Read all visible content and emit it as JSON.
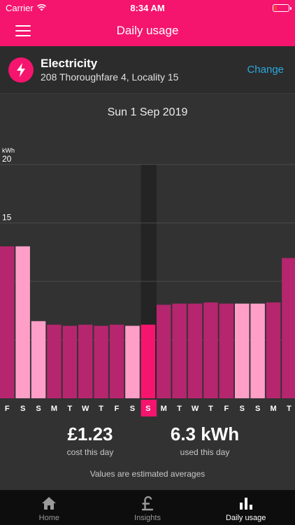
{
  "status_bar": {
    "carrier": "Carrier",
    "time": "8:34 AM"
  },
  "nav": {
    "title": "Daily usage"
  },
  "supply": {
    "icon": "lightning-icon",
    "title": "Electricity",
    "address": "208 Thoroughfare 4, Locality 15",
    "change_label": "Change"
  },
  "date": "Sun 1 Sep 2019",
  "colors": {
    "brand_pink": "#f5146e",
    "bar_dark": "#b5266e",
    "bar_light": "#ff9fc8",
    "selected_column": "#242424",
    "link_blue": "#2aa8e0"
  },
  "chart_data": {
    "type": "bar",
    "ylabel": "kWh",
    "ylim": [
      0,
      20
    ],
    "yticks": [
      "5.0",
      "10",
      "15",
      "20"
    ],
    "ytick_values": [
      5,
      10,
      15,
      20
    ],
    "categories": [
      "F",
      "S",
      "S",
      "M",
      "T",
      "W",
      "T",
      "F",
      "S",
      "S",
      "M",
      "T",
      "W",
      "T",
      "F",
      "S",
      "S",
      "M",
      "T"
    ],
    "values": [
      13.0,
      13.0,
      6.6,
      6.3,
      6.2,
      6.3,
      6.2,
      6.3,
      6.2,
      6.3,
      8.0,
      8.1,
      8.1,
      8.2,
      8.1,
      8.1,
      8.1,
      8.2,
      12.0
    ],
    "weekend": [
      false,
      true,
      true,
      false,
      false,
      false,
      false,
      false,
      true,
      true,
      false,
      false,
      false,
      false,
      false,
      true,
      true,
      false,
      false
    ],
    "selected_index": 9,
    "grid": true
  },
  "summary": {
    "cost_value": "£1.23",
    "cost_label": "cost this day",
    "usage_value": "6.3 kWh",
    "usage_label": "used this day",
    "note": "Values are estimated averages"
  },
  "tabs": [
    {
      "label": "Home",
      "icon": "home-icon",
      "active": false
    },
    {
      "label": "Insights",
      "icon": "pound-icon",
      "active": false
    },
    {
      "label": "Daily usage",
      "icon": "bar-chart-icon",
      "active": true
    }
  ]
}
